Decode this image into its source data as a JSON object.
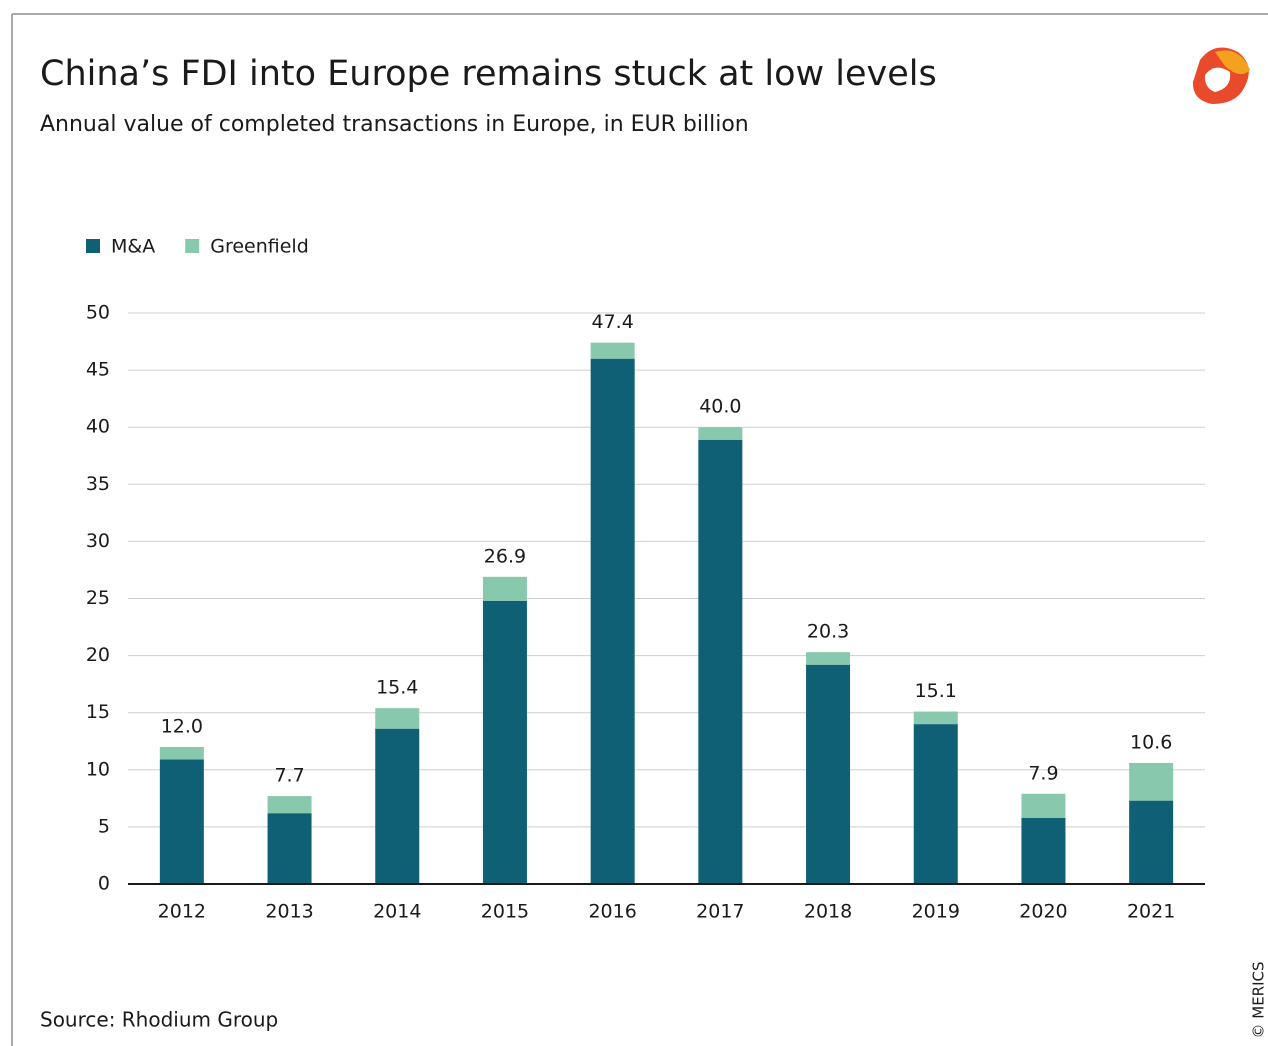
{
  "chart_data": {
    "type": "stacked_bar",
    "title": "China’s FDI into Europe remains stuck at low levels",
    "subtitle": "Annual value of completed transactions in Europe, in EUR billion",
    "source": "Source: Rhodium Group",
    "credit": "© MERICS",
    "categories": [
      "2012",
      "2013",
      "2014",
      "2015",
      "2016",
      "2017",
      "2018",
      "2019",
      "2020",
      "2021"
    ],
    "series": [
      {
        "name": "M&A",
        "color": "#0f5f75",
        "values": [
          10.9,
          6.2,
          13.6,
          24.8,
          46.0,
          38.9,
          19.2,
          14.0,
          5.8,
          7.3
        ]
      },
      {
        "name": "Greenfield",
        "color": "#88c9ad",
        "values": [
          1.1,
          1.5,
          1.8,
          2.1,
          1.4,
          1.1,
          1.1,
          1.1,
          2.1,
          3.3
        ]
      }
    ],
    "totals": [
      12,
      7.7,
      15.4,
      26.9,
      47.4,
      40,
      20.3,
      15.1,
      7.9,
      10.6
    ],
    "value_labels": [
      "12.0",
      "7.7",
      "15.4",
      "26.9",
      "47.4",
      "40.0",
      "20.3",
      "15.1",
      "7.9",
      "10.6"
    ],
    "ylim": [
      0,
      50
    ],
    "yticks": [
      0,
      5,
      10,
      15,
      20,
      25,
      30,
      35,
      40,
      45,
      50
    ],
    "grid": true,
    "legend": "top-left"
  }
}
